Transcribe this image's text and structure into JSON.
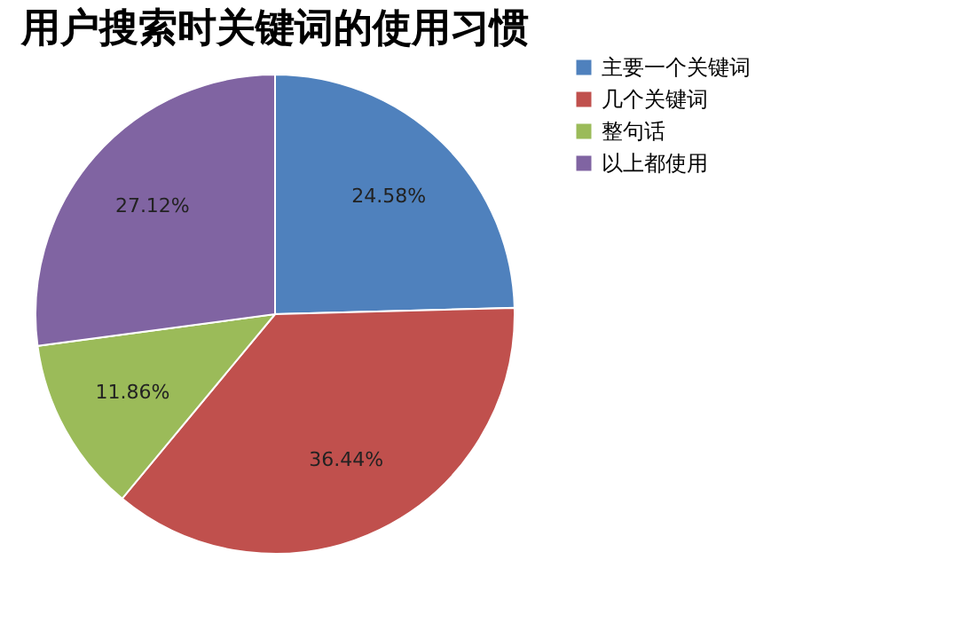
{
  "chart_data": {
    "type": "pie",
    "title": "用户搜索时关键词的使用习惯",
    "categories": [
      "主要一个关键词",
      "几个关键词",
      "整句话",
      "以上都使用"
    ],
    "values": [
      24.58,
      36.44,
      11.86,
      27.12
    ],
    "colors": [
      "#4f81bd",
      "#c0504d",
      "#9bbb59",
      "#8064a2"
    ],
    "value_labels": [
      "24.58%",
      "36.44%",
      "11.86%",
      "27.12%"
    ],
    "legend": "right"
  }
}
